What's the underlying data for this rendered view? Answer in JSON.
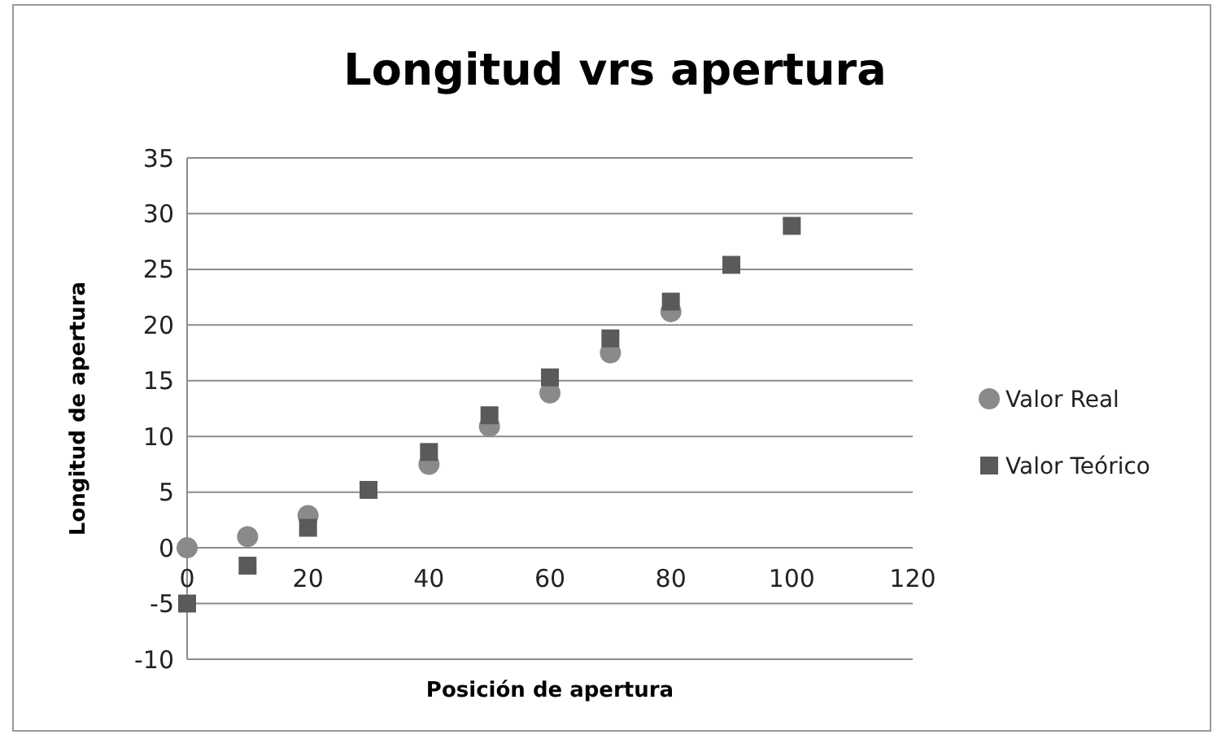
{
  "chart_data": {
    "type": "scatter",
    "title": "Longitud vrs apertura",
    "xlabel": "Posición de apertura",
    "ylabel": "Longitud de apertura",
    "xlim": [
      0,
      120
    ],
    "xticks": [
      0,
      20,
      40,
      60,
      80,
      100,
      120
    ],
    "ylim": [
      -10,
      35
    ],
    "yticks": [
      -10,
      -5,
      0,
      5,
      10,
      15,
      20,
      25,
      30,
      35
    ],
    "grid": "y",
    "legend": "right",
    "series": [
      {
        "name": "Valor Real",
        "color": "#8a8a8a",
        "marker": "circle",
        "x": [
          0,
          10,
          20,
          40,
          50,
          60,
          70,
          80
        ],
        "values": [
          0,
          1.0,
          2.9,
          7.5,
          10.9,
          13.9,
          17.5,
          21.2
        ]
      },
      {
        "name": "Valor Teórico",
        "color": "#5a5a5a",
        "marker": "square",
        "x": [
          0,
          10,
          20,
          30,
          40,
          50,
          60,
          70,
          80,
          90,
          100
        ],
        "values": [
          -5.0,
          -1.6,
          1.8,
          5.2,
          8.6,
          11.9,
          15.3,
          18.8,
          22.1,
          25.4,
          28.9
        ]
      }
    ]
  }
}
